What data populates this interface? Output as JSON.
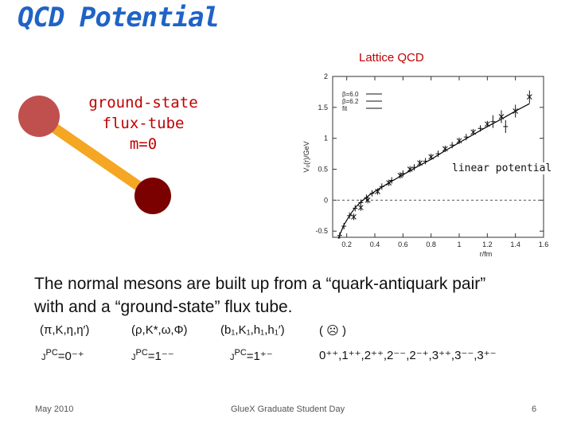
{
  "slide": {
    "title": "QCD Potential",
    "lattice_label": "Lattice QCD",
    "flux_tube_lines": [
      "ground-state",
      "flux-tube",
      "m=0"
    ],
    "linear_potential_label": "linear potential",
    "description": "The normal mesons are built up from a “quark-antiquark pair” with and a “ground-state” flux tube.",
    "meson_groups": [
      {
        "particles": "(π,K,η,η′)",
        "jpc_prefix": "J",
        "jpc_super": "PC",
        "jpc_value": "=0⁻⁺"
      },
      {
        "particles": "(ρ,K*,ω,Φ)",
        "jpc_prefix": "J",
        "jpc_super": "PC",
        "jpc_value": "=1⁻⁻"
      },
      {
        "particles": "(b₁,K₁,h₁,h₁′)",
        "jpc_prefix": "J",
        "jpc_super": "PC",
        "jpc_value": "=1⁺⁻"
      },
      {
        "particles": "( ☹ )",
        "jpc_prefix": "",
        "jpc_super": "",
        "jpc_value": "0⁺⁺,1⁺⁺,2⁺⁺,2⁻⁻,2⁻⁺,3⁺⁺,3⁻⁻,3⁺⁻"
      }
    ],
    "footer": {
      "date": "May 2010",
      "event": "GlueX Graduate Student Day",
      "page": "6"
    }
  },
  "colors": {
    "title": "#1f63c6",
    "accent_red": "#c00000",
    "quark": "#c0504d",
    "antiquark": "#7b0000",
    "tube": "#f5a623"
  },
  "chart_data": {
    "type": "scatter",
    "xlabel": "r/fm",
    "ylabel": "V₀(r)/GeV",
    "xlim": [
      0.1,
      1.6
    ],
    "ylim": [
      -0.6,
      2.0
    ],
    "x_ticks": [
      "0.2",
      "0.4",
      "0.6",
      "0.8",
      "1",
      "1.2",
      "1.4",
      "1.6"
    ],
    "y_ticks": [
      "-0.5",
      "0",
      "0.5",
      "1",
      "1.5",
      "2"
    ],
    "legend": [
      "β=6.0",
      "β=6.2",
      "fit"
    ],
    "legend_position": "top-left",
    "series": [
      {
        "name": "β=6.0",
        "x": [
          0.25,
          0.3,
          0.35,
          0.42,
          0.5,
          0.58,
          0.65,
          0.72,
          0.8,
          0.9,
          1.0,
          1.1,
          1.2,
          1.3,
          1.4,
          1.5
        ],
        "y": [
          -0.27,
          -0.12,
          0.0,
          0.14,
          0.28,
          0.4,
          0.5,
          0.6,
          0.7,
          0.83,
          0.96,
          1.1,
          1.23,
          1.35,
          1.44,
          1.67
        ]
      },
      {
        "name": "β=6.2",
        "x": [
          0.15,
          0.18,
          0.22,
          0.26,
          0.3,
          0.34,
          0.38,
          0.45,
          0.52,
          0.6,
          0.68,
          0.76,
          0.85,
          0.95,
          1.05,
          1.15,
          1.24,
          1.33
        ],
        "y": [
          -0.57,
          -0.42,
          -0.25,
          -0.13,
          -0.04,
          0.04,
          0.11,
          0.22,
          0.32,
          0.43,
          0.53,
          0.63,
          0.75,
          0.89,
          1.02,
          1.16,
          1.27,
          1.19
        ]
      }
    ],
    "fit_line": {
      "name": "fit",
      "x": [
        0.14,
        0.18,
        0.22,
        0.26,
        0.3,
        0.36,
        0.42,
        0.5,
        0.6,
        0.7,
        0.8,
        0.9,
        1.0,
        1.1,
        1.2,
        1.3,
        1.4,
        1.5
      ],
      "y": [
        -0.62,
        -0.4,
        -0.25,
        -0.12,
        -0.03,
        0.08,
        0.17,
        0.28,
        0.41,
        0.54,
        0.66,
        0.8,
        0.93,
        1.06,
        1.19,
        1.31,
        1.44,
        1.56
      ]
    },
    "zero_line": true,
    "grid": false
  }
}
